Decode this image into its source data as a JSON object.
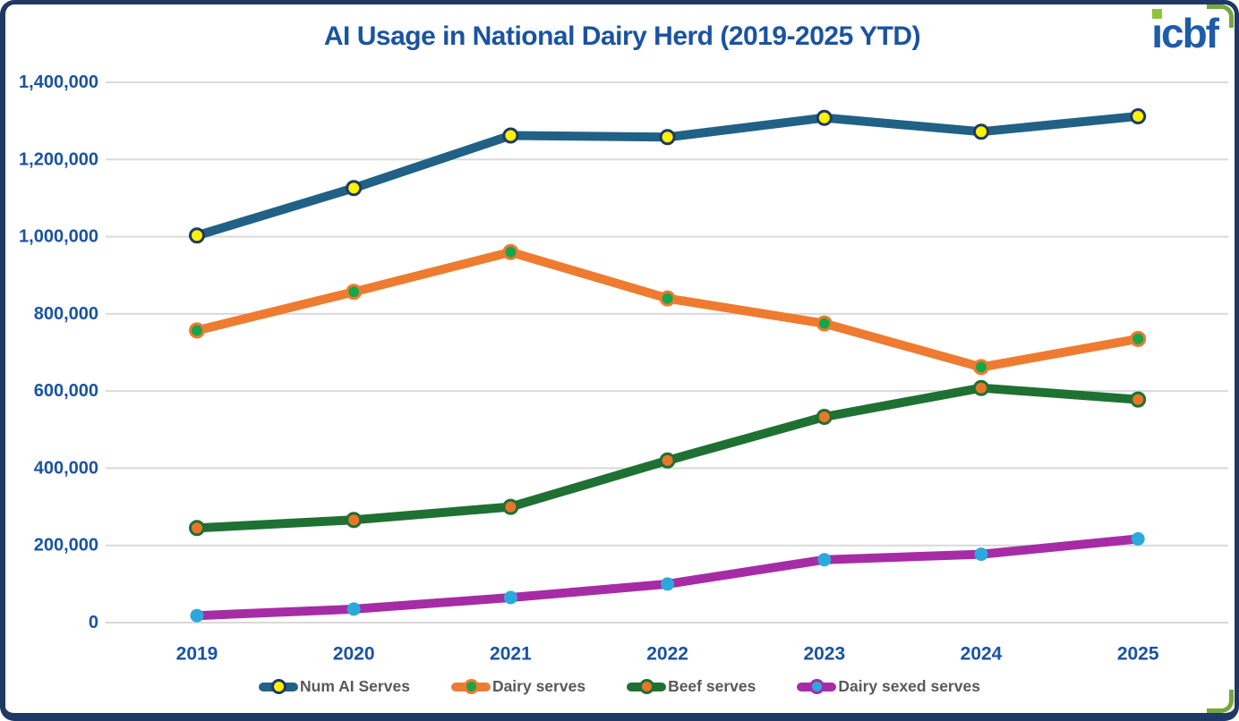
{
  "header": {
    "logo_text": "icbf"
  },
  "chart_data": {
    "type": "line",
    "title": "AI Usage in National Dairy Herd (2019-2025 YTD)",
    "categories": [
      "2019",
      "2020",
      "2021",
      "2022",
      "2023",
      "2024",
      "2025"
    ],
    "series": [
      {
        "name": "Num AI Serves",
        "line_color": "#206185",
        "marker_fill": "#FFF200",
        "marker_stroke": "#1F3864",
        "marker_stroke_width": 3,
        "values": [
          1003000,
          1126000,
          1262000,
          1258000,
          1308000,
          1272000,
          1312000
        ]
      },
      {
        "name": "Dairy serves",
        "line_color": "#EE7B30",
        "marker_fill": "#17A54A",
        "marker_stroke": "#EE7B30",
        "marker_stroke_width": 3,
        "values": [
          757000,
          857000,
          960000,
          840000,
          775000,
          662000,
          735000
        ]
      },
      {
        "name": "Beef serves",
        "line_color": "#1F7033",
        "marker_fill": "#E8762C",
        "marker_stroke": "#1F7033",
        "marker_stroke_width": 3,
        "values": [
          245000,
          266000,
          300000,
          420000,
          533000,
          608000,
          578000
        ]
      },
      {
        "name": "Dairy sexed serves",
        "line_color": "#A62CA5",
        "marker_fill": "#2AA9DD",
        "marker_stroke": "#A62CA5",
        "marker_stroke_width": 0,
        "values": [
          18000,
          35000,
          65000,
          100000,
          163000,
          177000,
          217000
        ]
      }
    ],
    "y_ticks": [
      {
        "value": 0,
        "label": "0"
      },
      {
        "value": 200000,
        "label": "200,000"
      },
      {
        "value": 400000,
        "label": "400,000"
      },
      {
        "value": 600000,
        "label": "600,000"
      },
      {
        "value": 800000,
        "label": "800,000"
      },
      {
        "value": 1000000,
        "label": "1,000,000"
      },
      {
        "value": 1200000,
        "label": "1,200,000"
      },
      {
        "value": 1400000,
        "label": "1,400,000"
      }
    ],
    "ylim": [
      0,
      1400000
    ],
    "grid": true,
    "legend_position": "bottom"
  },
  "colors": {
    "axis_text": "#1A53A1",
    "legend_text": "#595959",
    "border_navy": "#1F3864",
    "gridline": "#D9D9D9",
    "accent_green": "#76A63F",
    "logo_blue": "#1D5CA9",
    "logo_dot_green": "#8CC63E"
  }
}
